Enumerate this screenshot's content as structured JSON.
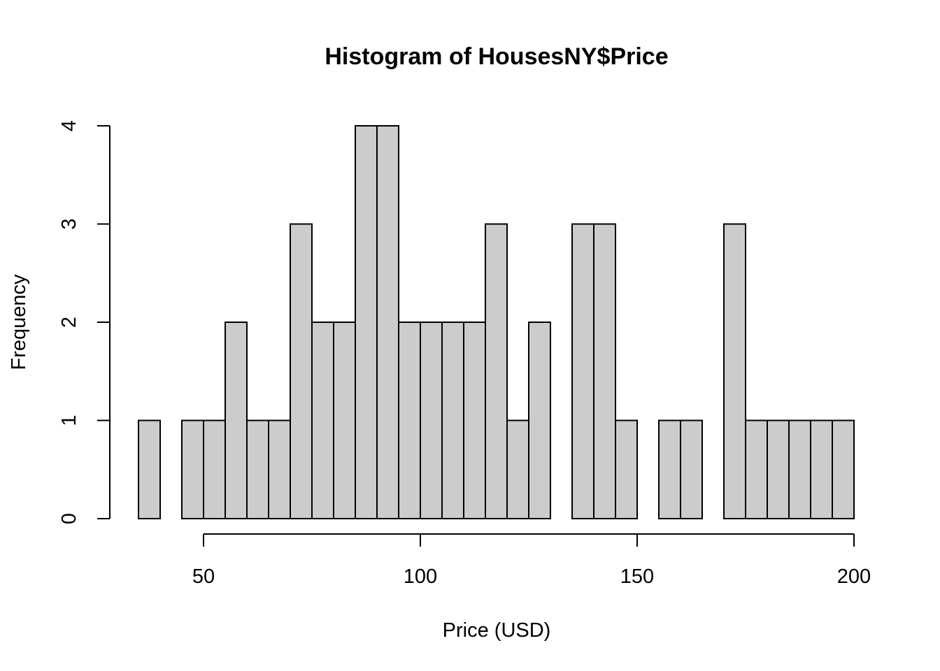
{
  "chart_data": {
    "type": "bar",
    "title": "Histogram of HousesNY$Price",
    "xlabel": "Price (USD)",
    "ylabel": "Frequency",
    "bin_width": 5,
    "bins": [
      {
        "start": 35,
        "end": 40,
        "count": 1
      },
      {
        "start": 40,
        "end": 45,
        "count": 0
      },
      {
        "start": 45,
        "end": 50,
        "count": 1
      },
      {
        "start": 50,
        "end": 55,
        "count": 1
      },
      {
        "start": 55,
        "end": 60,
        "count": 2
      },
      {
        "start": 60,
        "end": 65,
        "count": 1
      },
      {
        "start": 65,
        "end": 70,
        "count": 1
      },
      {
        "start": 70,
        "end": 75,
        "count": 3
      },
      {
        "start": 75,
        "end": 80,
        "count": 2
      },
      {
        "start": 80,
        "end": 85,
        "count": 2
      },
      {
        "start": 85,
        "end": 90,
        "count": 4
      },
      {
        "start": 90,
        "end": 95,
        "count": 4
      },
      {
        "start": 95,
        "end": 100,
        "count": 2
      },
      {
        "start": 100,
        "end": 105,
        "count": 2
      },
      {
        "start": 105,
        "end": 110,
        "count": 2
      },
      {
        "start": 110,
        "end": 115,
        "count": 2
      },
      {
        "start": 115,
        "end": 120,
        "count": 3
      },
      {
        "start": 120,
        "end": 125,
        "count": 1
      },
      {
        "start": 125,
        "end": 130,
        "count": 2
      },
      {
        "start": 130,
        "end": 135,
        "count": 0
      },
      {
        "start": 135,
        "end": 140,
        "count": 3
      },
      {
        "start": 140,
        "end": 145,
        "count": 3
      },
      {
        "start": 145,
        "end": 150,
        "count": 1
      },
      {
        "start": 150,
        "end": 155,
        "count": 0
      },
      {
        "start": 155,
        "end": 160,
        "count": 1
      },
      {
        "start": 160,
        "end": 165,
        "count": 1
      },
      {
        "start": 165,
        "end": 170,
        "count": 0
      },
      {
        "start": 170,
        "end": 175,
        "count": 3
      },
      {
        "start": 175,
        "end": 180,
        "count": 1
      },
      {
        "start": 180,
        "end": 185,
        "count": 1
      },
      {
        "start": 185,
        "end": 190,
        "count": 1
      },
      {
        "start": 190,
        "end": 195,
        "count": 1
      },
      {
        "start": 195,
        "end": 200,
        "count": 1
      }
    ],
    "xlim": [
      35,
      200
    ],
    "ylim": [
      0,
      4
    ],
    "x_ticks": [
      50,
      100,
      150,
      200
    ],
    "y_ticks": [
      0,
      1,
      2,
      3,
      4
    ],
    "bar_color": "#cccccc",
    "grid": false,
    "legend": "none"
  }
}
